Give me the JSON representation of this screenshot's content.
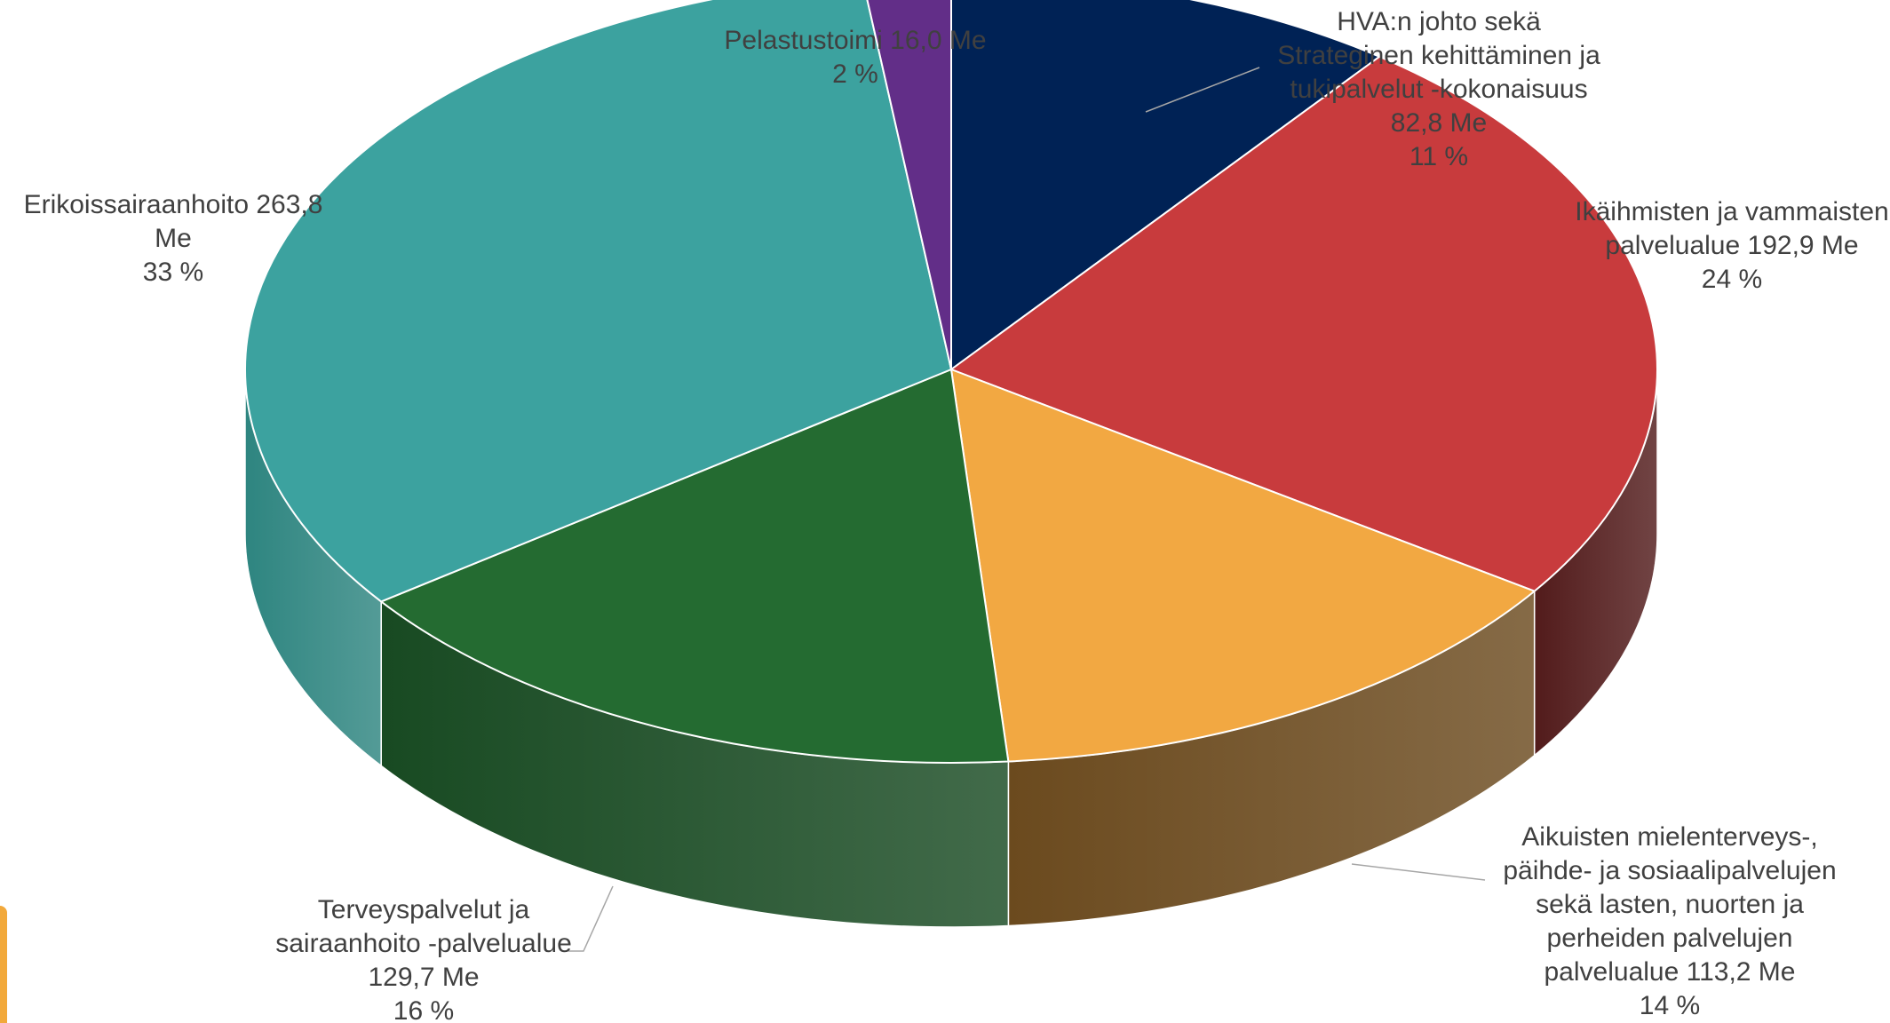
{
  "chart_data": {
    "type": "pie",
    "title": "",
    "unit": "Me",
    "slices": [
      {
        "name": "HVA:n johto sekä Strateginen kehittäminen ja tukipalvelut -kokonaisuus",
        "value": 82.8,
        "percent": 11,
        "color": "#002255",
        "side_color": "#00152f",
        "label_lines": [
          "HVA:n johto sekä",
          "Strateginen kehittäminen ja",
          "tukipalvelut -kokonaisuus",
          "82,8 Me",
          "11 %"
        ]
      },
      {
        "name": "Ikäihmisten ja vammaisten palvelualue",
        "value": 192.9,
        "percent": 24,
        "color": "#c83b3d",
        "side_color": "#521b1b",
        "label_lines": [
          "Ikäihmisten ja vammaisten",
          "palvelualue 192,9 Me",
          "24 %"
        ]
      },
      {
        "name": "Aikuisten mielenterveys-, päihde- ja sosiaalipalvelujen sekä lasten, nuorten ja perheiden palvelujen palvelualue",
        "value": 113.2,
        "percent": 14,
        "color": "#f2a842",
        "side_color": "#6b4a1e",
        "label_lines": [
          "Aikuisten mielenterveys-,",
          "päihde- ja sosiaalipalvelujen",
          "sekä lasten, nuorten ja",
          "perheiden palvelujen",
          "palvelualue 113,2 Me",
          "14 %"
        ]
      },
      {
        "name": "Terveyspalvelut ja sairaanhoito -palvelualue",
        "value": 129.7,
        "percent": 16,
        "color": "#246b31",
        "side_color": "#184a22",
        "label_lines": [
          "Terveyspalvelut ja",
          "sairaanhoito -palvelualue",
          "129,7 Me",
          "16 %"
        ]
      },
      {
        "name": "Erikoissairaanhoito",
        "value": 263.8,
        "percent": 33,
        "color": "#3ca29f",
        "side_color": "#2e8580",
        "label_lines": [
          "Erikoissairaanhoito 263,8",
          "Me",
          "33 %"
        ]
      },
      {
        "name": "Pelastustoimi",
        "value": 16.0,
        "percent": 2,
        "color": "#622e88",
        "side_color": "#3f1d58",
        "label_lines": [
          "Pelastustoimi 16,0 Me",
          "2 %"
        ]
      }
    ],
    "legend": "none",
    "data_labels": "outside, with leader lines"
  }
}
